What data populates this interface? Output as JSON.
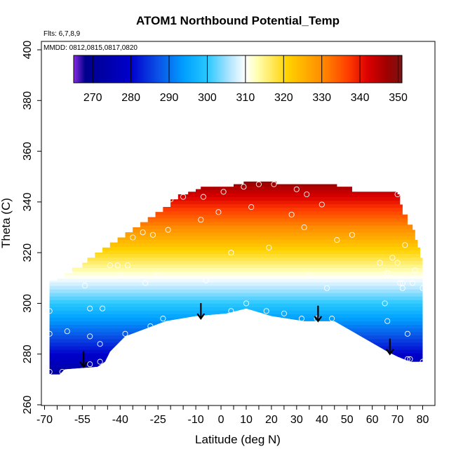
{
  "chart_data": {
    "type": "heatmap",
    "title": "ATOM1 Northbound Potential_Temp",
    "xlabel": "Latitude (deg N)",
    "ylabel": "Theta (C)",
    "xlim": [
      -70,
      80
    ],
    "ylim": [
      260,
      400
    ],
    "x_ticks": [
      -70,
      -55,
      -40,
      -25,
      -10,
      0,
      10,
      20,
      30,
      40,
      50,
      60,
      70,
      80
    ],
    "x_minor_ticks": [
      -65,
      -60,
      -50,
      -45,
      -35,
      -30,
      -20,
      -15,
      -5,
      5,
      15,
      25,
      35,
      45,
      55,
      65,
      75
    ],
    "y_ticks": [
      260,
      280,
      300,
      320,
      340,
      360,
      380,
      400
    ],
    "annotations": {
      "flights": "Flts: 6,7,8,9",
      "dates": "MMDD: 0812,0815,0817,0820"
    },
    "colorbar": {
      "min": 265,
      "max": 351,
      "ticks": [
        270,
        280,
        290,
        300,
        310,
        320,
        330,
        340,
        350
      ],
      "colors": [
        "#8a2be2",
        "#00008b",
        "#0000cd",
        "#0a50e6",
        "#00a0ff",
        "#28c8ff",
        "#b4e6ff",
        "#ffffff",
        "#ffffb4",
        "#ffd200",
        "#ff8c00",
        "#ff3c00",
        "#dc0000",
        "#a00000",
        "#781414"
      ],
      "stops": [
        265,
        268,
        280,
        287,
        294,
        300,
        306,
        310,
        313,
        321,
        330,
        337,
        342,
        347,
        351
      ]
    },
    "top_boundary": [
      [
        -68,
        309
      ],
      [
        -65,
        310
      ],
      [
        -62,
        312
      ],
      [
        -59,
        314
      ],
      [
        -55,
        316
      ],
      [
        -53,
        318
      ],
      [
        -50,
        320
      ],
      [
        -47,
        322
      ],
      [
        -44,
        324
      ],
      [
        -41,
        326
      ],
      [
        -38,
        328
      ],
      [
        -35,
        330
      ],
      [
        -32,
        332
      ],
      [
        -29,
        334
      ],
      [
        -26,
        336
      ],
      [
        -23,
        338
      ],
      [
        -20,
        341
      ],
      [
        -17,
        343
      ],
      [
        -13,
        344
      ],
      [
        -10,
        345
      ],
      [
        -8,
        346
      ],
      [
        0,
        346
      ],
      [
        5,
        347
      ],
      [
        9,
        348
      ],
      [
        18,
        348
      ],
      [
        22,
        347
      ],
      [
        35,
        347
      ],
      [
        46,
        346
      ],
      [
        52,
        344
      ],
      [
        60,
        344
      ],
      [
        66,
        344
      ],
      [
        70,
        343
      ],
      [
        71,
        339
      ],
      [
        72,
        335
      ],
      [
        74,
        331
      ],
      [
        76,
        329
      ],
      [
        77,
        325
      ],
      [
        78,
        322
      ],
      [
        79,
        318
      ],
      [
        80,
        309
      ]
    ],
    "bottom_boundary": [
      [
        -68,
        272
      ],
      [
        -64,
        272
      ],
      [
        -62,
        274
      ],
      [
        -49,
        275
      ],
      [
        -46,
        277
      ],
      [
        -44,
        281
      ],
      [
        -38,
        287
      ],
      [
        -30,
        290
      ],
      [
        -22,
        293
      ],
      [
        -10,
        295
      ],
      [
        2,
        296
      ],
      [
        10,
        298
      ],
      [
        20,
        295
      ],
      [
        33,
        293
      ],
      [
        45,
        293
      ],
      [
        66,
        281
      ],
      [
        70,
        279
      ],
      [
        75,
        277
      ],
      [
        80,
        277
      ]
    ],
    "arrows": [
      {
        "lat": -54.5,
        "theta": 275
      },
      {
        "lat": -8,
        "theta": 294
      },
      {
        "lat": 38.5,
        "theta": 293
      },
      {
        "lat": 67,
        "theta": 280
      }
    ],
    "observations": [
      [
        -68,
        297
      ],
      [
        -68,
        288
      ],
      [
        -68,
        273
      ],
      [
        -63,
        273
      ],
      [
        -61,
        289
      ],
      [
        -54,
        307
      ],
      [
        -52,
        298
      ],
      [
        -52,
        287
      ],
      [
        -52,
        276
      ],
      [
        -48,
        284
      ],
      [
        -48,
        277
      ],
      [
        -47,
        298
      ],
      [
        -44,
        315
      ],
      [
        -41,
        315
      ],
      [
        -40,
        311
      ],
      [
        -38,
        288
      ],
      [
        -37,
        315
      ],
      [
        -35,
        326
      ],
      [
        -31,
        328
      ],
      [
        -30,
        308
      ],
      [
        -28,
        291
      ],
      [
        -27,
        327
      ],
      [
        -25,
        311
      ],
      [
        -23,
        294
      ],
      [
        -21,
        329
      ],
      [
        -20,
        341
      ],
      [
        -15,
        342
      ],
      [
        -8,
        333
      ],
      [
        -7,
        342
      ],
      [
        -6,
        309
      ],
      [
        -1,
        336
      ],
      [
        1,
        344
      ],
      [
        4,
        320
      ],
      [
        4,
        297
      ],
      [
        9,
        346
      ],
      [
        10,
        300
      ],
      [
        12,
        338
      ],
      [
        15,
        347
      ],
      [
        18,
        297
      ],
      [
        19,
        322
      ],
      [
        21,
        347
      ],
      [
        25,
        296
      ],
      [
        28,
        335
      ],
      [
        30,
        345
      ],
      [
        32,
        294
      ],
      [
        33,
        330
      ],
      [
        34,
        343
      ],
      [
        35,
        311
      ],
      [
        38,
        294
      ],
      [
        40,
        339
      ],
      [
        42,
        306
      ],
      [
        44,
        294
      ],
      [
        46,
        325
      ],
      [
        52,
        327
      ],
      [
        63,
        316
      ],
      [
        65,
        300
      ],
      [
        66,
        312
      ],
      [
        66,
        293
      ],
      [
        68,
        318
      ],
      [
        70,
        343
      ],
      [
        70,
        316
      ],
      [
        71,
        308
      ],
      [
        72,
        306
      ],
      [
        72,
        308
      ],
      [
        73,
        323
      ],
      [
        74,
        278
      ],
      [
        74,
        288
      ],
      [
        75,
        278
      ],
      [
        76,
        308
      ],
      [
        77,
        313
      ],
      [
        80,
        306
      ],
      [
        80,
        277
      ]
    ]
  }
}
